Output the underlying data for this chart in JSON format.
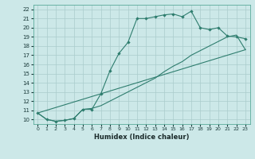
{
  "xlabel": "Humidex (Indice chaleur)",
  "bg_color": "#cce8e8",
  "grid_color": "#aacccc",
  "line_color": "#2e7d6e",
  "xlim": [
    -0.5,
    23.5
  ],
  "ylim": [
    9.5,
    22.5
  ],
  "xticks": [
    0,
    1,
    2,
    3,
    4,
    5,
    6,
    7,
    8,
    9,
    10,
    11,
    12,
    13,
    14,
    15,
    16,
    17,
    18,
    19,
    20,
    21,
    22,
    23
  ],
  "yticks": [
    10,
    11,
    12,
    13,
    14,
    15,
    16,
    17,
    18,
    19,
    20,
    21,
    22
  ],
  "line1_x": [
    0,
    1,
    2,
    3,
    4,
    5,
    6,
    7,
    8,
    9,
    10,
    11,
    12,
    13,
    14,
    15,
    16,
    17,
    18,
    19,
    20,
    21,
    22,
    23
  ],
  "line1_y": [
    10.7,
    10.0,
    9.8,
    9.9,
    10.1,
    11.1,
    11.1,
    12.8,
    15.3,
    17.2,
    18.4,
    21.0,
    21.0,
    21.2,
    21.4,
    21.5,
    21.2,
    21.8,
    20.0,
    19.8,
    20.0,
    19.1,
    19.0,
    18.8
  ],
  "line2_x": [
    0,
    1,
    2,
    3,
    4,
    5,
    6,
    7,
    8,
    9,
    10,
    11,
    12,
    13,
    14,
    15,
    16,
    17,
    18,
    19,
    20,
    21,
    22,
    23
  ],
  "line2_y": [
    10.7,
    10.0,
    9.8,
    9.9,
    10.1,
    11.1,
    11.2,
    11.5,
    12.0,
    12.5,
    13.0,
    13.5,
    14.0,
    14.5,
    15.2,
    15.8,
    16.3,
    17.0,
    17.5,
    18.0,
    18.5,
    19.0,
    19.2,
    17.6
  ],
  "line3_x": [
    0,
    23
  ],
  "line3_y": [
    10.7,
    17.6
  ]
}
